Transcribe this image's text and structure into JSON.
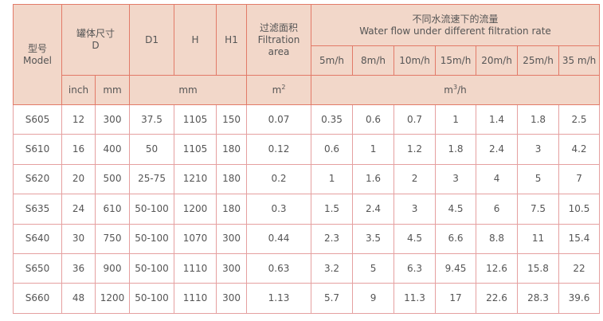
{
  "header": {
    "model_cn": "型号",
    "model_en": "Model",
    "size_cn": "罐体尺寸",
    "size_en": "D",
    "d1": "D1",
    "h": "H",
    "h1": "H1",
    "area_cn": "过滤面积",
    "area_en1": "Filtration",
    "area_en2": "area",
    "flow_cn": "不同水流速下的流量",
    "flow_en": "Water flow under different filtration rate",
    "rates": [
      "5m/h",
      "8m/h",
      "10m/h",
      "15m/h",
      "20m/h",
      "25m/h",
      "35 m/h"
    ],
    "unit_inch": "inch",
    "unit_mm": "mm",
    "unit_mm2": "mm",
    "unit_area": "m",
    "unit_area_sup": "2",
    "unit_flow": "m",
    "unit_flow_sup": "3",
    "unit_flow_tail": "/h"
  },
  "rows": [
    [
      "S605",
      "12",
      "300",
      "37.5",
      "1105",
      "150",
      "0.07",
      "0.35",
      "0.6",
      "0.7",
      "1",
      "1.4",
      "1.8",
      "2.5"
    ],
    [
      "S610",
      "16",
      "400",
      "50",
      "1105",
      "180",
      "0.12",
      "0.6",
      "1",
      "1.2",
      "1.8",
      "2.4",
      "3",
      "4.2"
    ],
    [
      "S620",
      "20",
      "500",
      "25-75",
      "1210",
      "180",
      "0.2",
      "1",
      "1.6",
      "2",
      "3",
      "4",
      "5",
      "7"
    ],
    [
      "S635",
      "24",
      "610",
      "50-100",
      "1200",
      "180",
      "0.3",
      "1.5",
      "2.4",
      "3",
      "4.5",
      "6",
      "7.5",
      "10.5"
    ],
    [
      "S640",
      "30",
      "750",
      "50-100",
      "1070",
      "300",
      "0.44",
      "2.3",
      "3.5",
      "4.5",
      "6.6",
      "8.8",
      "11",
      "15.4"
    ],
    [
      "S650",
      "36",
      "900",
      "50-100",
      "1110",
      "300",
      "0.63",
      "3.2",
      "5",
      "6.3",
      "9.45",
      "12.6",
      "15.8",
      "22"
    ],
    [
      "S660",
      "48",
      "1200",
      "50-100",
      "1110",
      "300",
      "1.13",
      "5.7",
      "9",
      "11.3",
      "17",
      "22.6",
      "28.3",
      "39.6"
    ]
  ]
}
